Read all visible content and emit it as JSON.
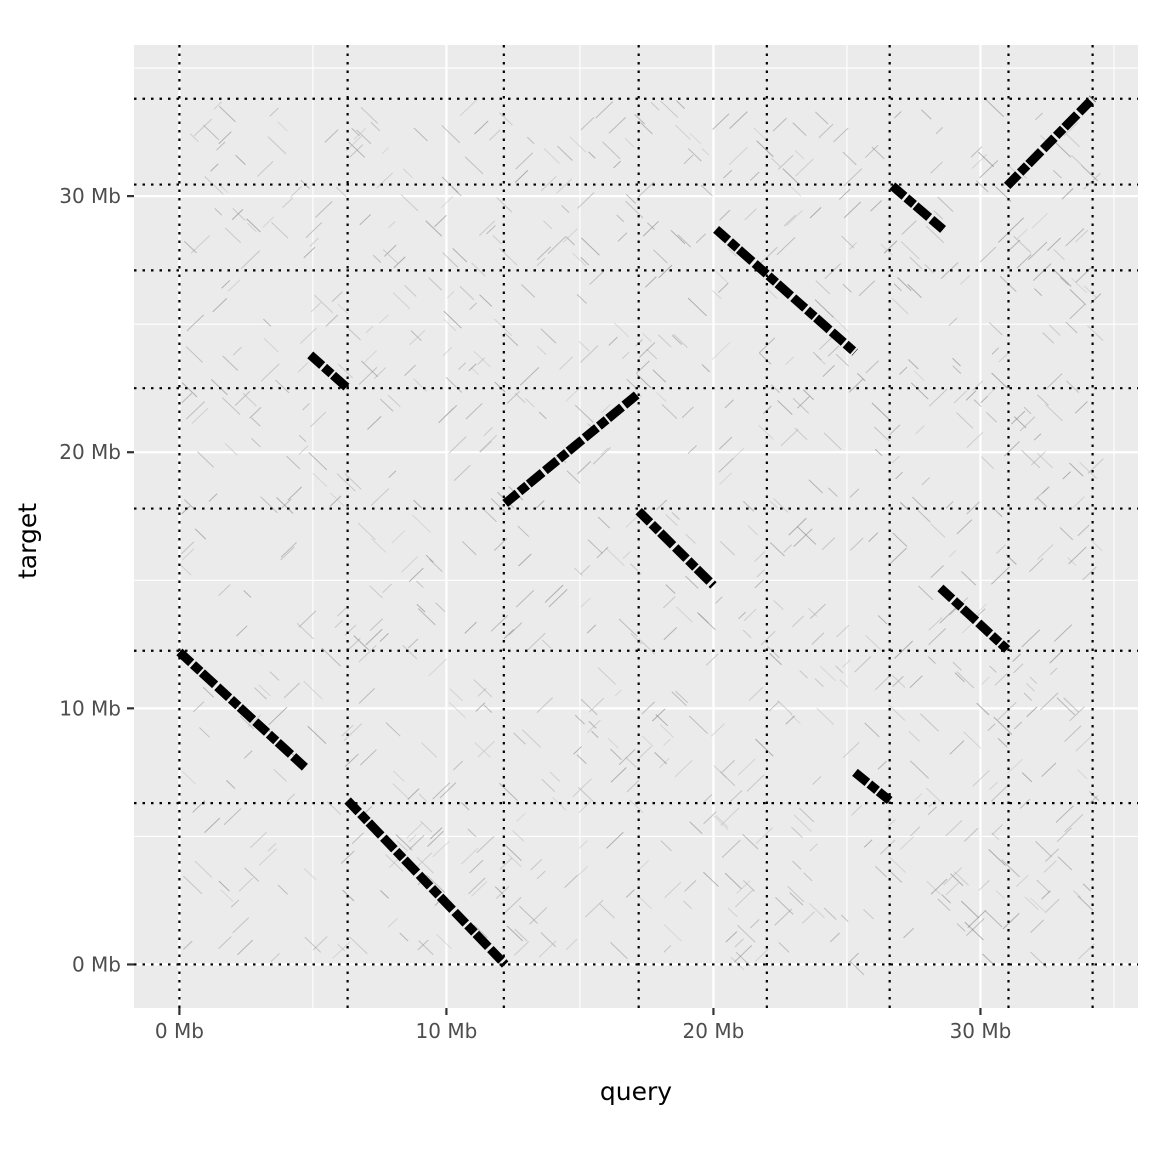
{
  "chart_data": {
    "type": "scatter",
    "title": "",
    "xlabel": "query",
    "ylabel": "target",
    "xlim": [
      -1.7,
      35.9
    ],
    "ylim": [
      -1.7,
      35.9
    ],
    "x_ticks": [
      0,
      10,
      20,
      30
    ],
    "x_tick_labels": [
      "0 Mb",
      "10 Mb",
      "20 Mb",
      "30 Mb"
    ],
    "y_ticks": [
      0,
      10,
      20,
      30
    ],
    "y_tick_labels": [
      "0 Mb",
      "10 Mb",
      "20 Mb",
      "30 Mb"
    ],
    "grid": true,
    "query_boundaries_mb": [
      0,
      6.3,
      12.15,
      17.2,
      22.0,
      26.6,
      31.05,
      34.2
    ],
    "target_boundaries_mb": [
      0,
      6.3,
      12.25,
      17.8,
      22.5,
      27.1,
      30.45,
      33.8
    ],
    "alignment_segments": [
      {
        "x_start": 0.0,
        "y_start": 12.2,
        "x_end": 4.7,
        "y_end": 7.7,
        "orientation": "reverse"
      },
      {
        "x_start": 6.3,
        "y_start": 6.4,
        "x_end": 12.2,
        "y_end": 0.0,
        "orientation": "reverse"
      },
      {
        "x_start": 4.9,
        "y_start": 23.8,
        "x_end": 6.3,
        "y_end": 22.5,
        "orientation": "reverse"
      },
      {
        "x_start": 12.2,
        "y_start": 18.0,
        "x_end": 17.2,
        "y_end": 22.3,
        "orientation": "forward"
      },
      {
        "x_start": 17.2,
        "y_start": 17.7,
        "x_end": 20.0,
        "y_end": 14.8,
        "orientation": "reverse"
      },
      {
        "x_start": 20.1,
        "y_start": 28.7,
        "x_end": 25.3,
        "y_end": 23.9,
        "orientation": "reverse"
      },
      {
        "x_start": 25.3,
        "y_start": 7.5,
        "x_end": 26.6,
        "y_end": 6.4,
        "orientation": "reverse"
      },
      {
        "x_start": 26.7,
        "y_start": 30.4,
        "x_end": 28.6,
        "y_end": 28.7,
        "orientation": "reverse"
      },
      {
        "x_start": 28.5,
        "y_start": 14.7,
        "x_end": 31.0,
        "y_end": 12.3,
        "orientation": "reverse"
      },
      {
        "x_start": 31.0,
        "y_start": 30.4,
        "x_end": 34.2,
        "y_end": 33.8,
        "orientation": "forward"
      }
    ]
  }
}
